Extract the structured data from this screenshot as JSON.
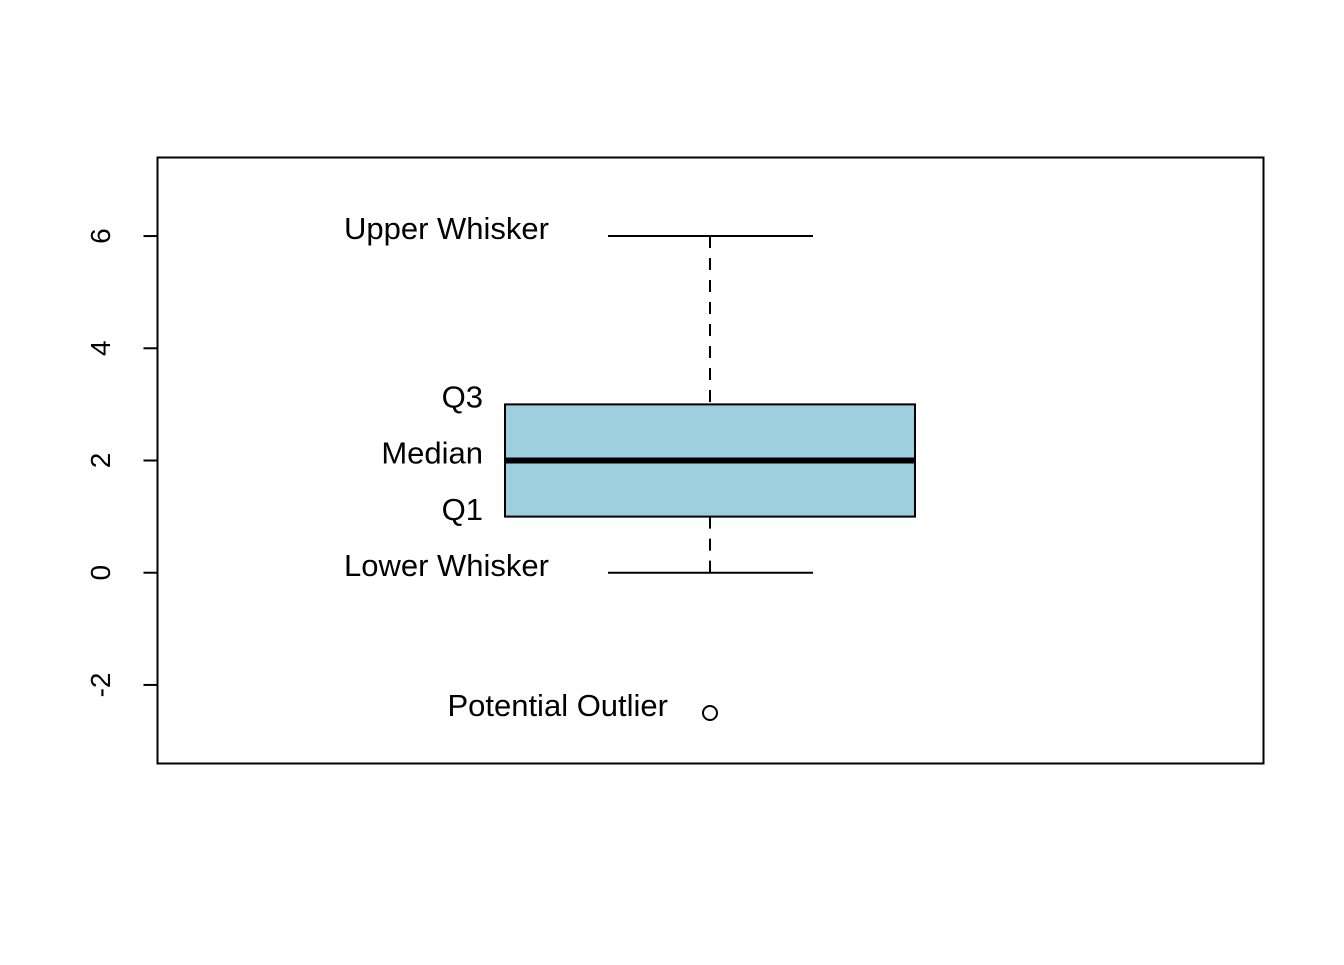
{
  "chart_data": {
    "type": "box",
    "title": "",
    "xlabel": "",
    "ylabel": "",
    "ylim": [
      -3.4,
      7.4
    ],
    "yticks": [
      -2,
      0,
      2,
      4,
      6
    ],
    "ytick_labels": [
      "-2",
      "0",
      "2",
      "4",
      "6"
    ],
    "grid": false,
    "box": {
      "lower_whisker": 0,
      "q1": 1,
      "median": 2,
      "q3": 3,
      "upper_whisker": 6,
      "outliers": [
        -2.5
      ],
      "fill_color": "#9ecfdf",
      "median_color": "#000000"
    },
    "annotations": [
      {
        "key": "upper_whisker",
        "text": "Upper Whisker",
        "y": 6
      },
      {
        "key": "q3",
        "text": "Q3",
        "y": 3
      },
      {
        "key": "median",
        "text": "Median",
        "y": 2
      },
      {
        "key": "q1",
        "text": "Q1",
        "y": 1
      },
      {
        "key": "lower_whisker",
        "text": "Lower Whisker",
        "y": 0
      },
      {
        "key": "outlier",
        "text": "Potential Outlier",
        "y": -2.5
      }
    ]
  }
}
